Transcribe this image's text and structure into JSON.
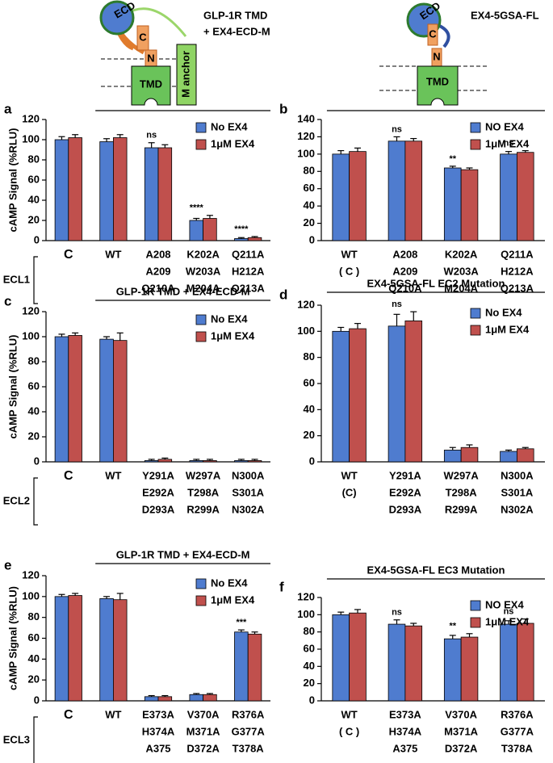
{
  "diagrams": {
    "left": {
      "title": [
        "GLP-1R TMD",
        "+ EX4-ECD-M"
      ],
      "ecd": "ECD",
      "c_term": "C",
      "n_term": "N",
      "tmd": "TMD",
      "anchor": "M anchor"
    },
    "right": {
      "title": [
        "EX4-5GSA-FL"
      ],
      "ecd": "ECD",
      "c_term": "C",
      "n_term": "N",
      "tmd": "TMD"
    }
  },
  "chart_data": [
    {
      "type": "bar",
      "panel": "a",
      "ylabel": "cAMP Signal (%RLU)",
      "row_label": "ECL1",
      "categories": [
        [
          "C"
        ],
        [
          "WT"
        ],
        [
          "A208",
          "A209",
          "Q210A"
        ],
        [
          "K202A",
          "W203A",
          "M204A"
        ],
        [
          "Q211A",
          "H212A",
          "Q213A"
        ]
      ],
      "series": [
        {
          "name": "No EX4",
          "color": "#4f7ccf",
          "values": [
            100,
            98,
            92,
            20,
            2
          ],
          "errors": [
            3,
            3,
            5,
            2,
            1
          ]
        },
        {
          "name": "1μM EX4",
          "color": "#c0504d",
          "values": [
            102,
            102,
            92,
            22,
            3
          ],
          "errors": [
            3,
            3,
            3,
            3,
            1
          ]
        }
      ],
      "significance": [
        null,
        null,
        "ns",
        "****",
        "****"
      ],
      "ylim": [
        0,
        120
      ],
      "yticks": [
        0,
        20,
        40,
        60,
        80,
        100,
        120
      ]
    },
    {
      "type": "bar",
      "panel": "b",
      "categories": [
        [
          "WT",
          "( C )"
        ],
        [
          "A208",
          "A209",
          "Q210A"
        ],
        [
          "K202A",
          "W203A",
          "M204A"
        ],
        [
          "Q211A",
          "H212A",
          "Q213A"
        ]
      ],
      "series": [
        {
          "name": "NO EX4",
          "color": "#4f7ccf",
          "values": [
            100,
            115,
            84,
            100
          ],
          "errors": [
            4,
            5,
            2,
            3
          ]
        },
        {
          "name": "1μM EX4",
          "color": "#c0504d",
          "values": [
            103,
            115,
            82,
            102
          ],
          "errors": [
            4,
            3,
            2,
            2
          ]
        }
      ],
      "significance": [
        null,
        "ns",
        "**",
        "ns"
      ],
      "ylim": [
        0,
        140
      ],
      "yticks": [
        0,
        20,
        40,
        60,
        80,
        100,
        120,
        140
      ]
    },
    {
      "type": "bar",
      "panel": "c",
      "ylabel": "cAMP Signal (%RLU)",
      "row_label": "ECL2",
      "header": "GLP-1R TMD + EX4-ECD-M",
      "categories": [
        [
          "C"
        ],
        [
          "WT"
        ],
        [
          "Y291A",
          "E292A",
          "D293A"
        ],
        [
          "W297A",
          "T298A",
          "R299A"
        ],
        [
          "N300A",
          "S301A",
          "N302A"
        ]
      ],
      "series": [
        {
          "name": "No EX4",
          "color": "#4f7ccf",
          "values": [
            100,
            98,
            1,
            1,
            1
          ],
          "errors": [
            2,
            2,
            1,
            1,
            1
          ]
        },
        {
          "name": "1μM EX4",
          "color": "#c0504d",
          "values": [
            101,
            97,
            2,
            1,
            1
          ],
          "errors": [
            2,
            6,
            1,
            1,
            1
          ]
        }
      ],
      "ylim": [
        0,
        120
      ],
      "yticks": [
        0,
        20,
        40,
        60,
        80,
        100,
        120
      ]
    },
    {
      "type": "bar",
      "panel": "d",
      "header": "EX4-5GSA-FL EC2 Mutation",
      "categories": [
        [
          "WT",
          "(C)"
        ],
        [
          "Y291A",
          "E292A",
          "D293A"
        ],
        [
          "W297A",
          "T298A",
          "R299A"
        ],
        [
          "N300A",
          "S301A",
          "N302A"
        ]
      ],
      "series": [
        {
          "name": "No EX4",
          "color": "#4f7ccf",
          "values": [
            100,
            104,
            9,
            8
          ],
          "errors": [
            3,
            9,
            2,
            1
          ]
        },
        {
          "name": "1μM EX4",
          "color": "#c0504d",
          "values": [
            102,
            108,
            11,
            10
          ],
          "errors": [
            4,
            7,
            2,
            1
          ]
        }
      ],
      "significance": [
        null,
        "ns",
        null,
        null
      ],
      "ylim": [
        0,
        120
      ],
      "yticks": [
        0,
        20,
        40,
        60,
        80,
        100,
        120
      ]
    },
    {
      "type": "bar",
      "panel": "e",
      "ylabel": "cAMP Signal (%RLU)",
      "row_label": "ECL3",
      "header": "GLP-1R TMD + EX4-ECD-M",
      "categories": [
        [
          "C"
        ],
        [
          "WT"
        ],
        [
          "E373A",
          "H374A",
          "A375"
        ],
        [
          "V370A",
          "M371A",
          "D372A"
        ],
        [
          "R376A",
          "G377A",
          "T378A"
        ]
      ],
      "series": [
        {
          "name": "No EX4",
          "color": "#4f7ccf",
          "values": [
            100,
            98,
            4,
            6,
            66
          ],
          "errors": [
            2,
            2,
            1,
            1,
            2
          ]
        },
        {
          "name": "1μM EX4",
          "color": "#c0504d",
          "values": [
            101,
            97,
            4,
            6,
            64
          ],
          "errors": [
            2,
            6,
            1,
            1,
            2
          ]
        }
      ],
      "significance": [
        null,
        null,
        null,
        null,
        "***"
      ],
      "ylim": [
        0,
        120
      ],
      "yticks": [
        0,
        20,
        40,
        60,
        80,
        100,
        120
      ]
    },
    {
      "type": "bar",
      "panel": "f",
      "header": "EX4-5GSA-FL EC3 Mutation",
      "categories": [
        [
          "WT",
          "( C )"
        ],
        [
          "E373A",
          "H374A",
          "A375"
        ],
        [
          "V370A",
          "M371A",
          "D372A"
        ],
        [
          "R376A",
          "G377A",
          "T378A"
        ]
      ],
      "series": [
        {
          "name": "NO EX4",
          "color": "#4f7ccf",
          "values": [
            100,
            89,
            72,
            89
          ],
          "errors": [
            3,
            5,
            4,
            4
          ]
        },
        {
          "name": "1μM EX4",
          "color": "#c0504d",
          "values": [
            102,
            87,
            74,
            90
          ],
          "errors": [
            4,
            3,
            4,
            5
          ]
        }
      ],
      "significance": [
        null,
        "ns",
        "**",
        "ns"
      ],
      "ylim": [
        0,
        120
      ],
      "yticks": [
        0,
        20,
        40,
        60,
        80,
        100,
        120
      ]
    }
  ]
}
